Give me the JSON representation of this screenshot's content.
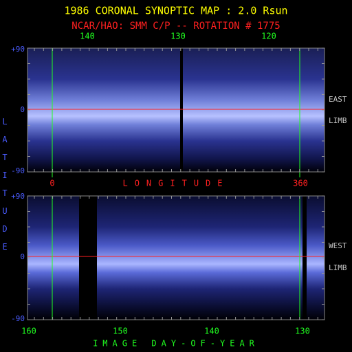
{
  "header": {
    "title": "1986 CORONAL SYNOPTIC MAP : 2.0 Rsun",
    "subtitle": "NCAR/HAO: SMM C/P -- ROTATION # 1775"
  },
  "top_panel": {
    "axis_labels": [
      "140",
      "130",
      "120"
    ],
    "lat_labels": [
      "+90",
      "0",
      "-90"
    ],
    "side_labels": [
      "EAST",
      "LIMB"
    ]
  },
  "middle_axis": {
    "left": "0",
    "title": "LONGITUDE",
    "right": "360"
  },
  "bottom_panel": {
    "lat_labels": [
      "+90",
      "0",
      "-90"
    ],
    "side_labels": [
      "WEST",
      "LIMB"
    ],
    "axis_labels": [
      "160",
      "150",
      "140",
      "130"
    ],
    "axis_title": "IMAGE DAY-OF-YEAR"
  },
  "side_title": "LATITUDE"
}
